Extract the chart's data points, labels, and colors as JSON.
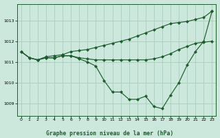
{
  "background_color": "#cce8dc",
  "grid_color": "#aaccbb",
  "line_color": "#1a5c2a",
  "title": "Graphe pression niveau de la mer (hPa)",
  "xlim": [
    -0.5,
    23.5
  ],
  "ylim": [
    1008.4,
    1013.8
  ],
  "yticks": [
    1009,
    1010,
    1011,
    1012,
    1013
  ],
  "xticks": [
    0,
    1,
    2,
    3,
    4,
    5,
    6,
    7,
    8,
    9,
    10,
    11,
    12,
    13,
    14,
    15,
    16,
    17,
    18,
    19,
    20,
    21,
    22,
    23
  ],
  "line1_x": [
    0,
    1,
    2,
    3,
    4,
    5,
    6,
    7,
    8,
    9,
    10,
    11,
    12,
    13,
    14,
    15,
    16,
    17,
    18,
    19,
    20,
    21,
    22,
    23
  ],
  "line1_y": [
    1011.5,
    1011.2,
    1011.1,
    1011.25,
    1011.3,
    1011.35,
    1011.5,
    1011.55,
    1011.6,
    1011.7,
    1011.8,
    1011.9,
    1012.0,
    1012.1,
    1012.25,
    1012.4,
    1012.55,
    1012.7,
    1012.85,
    1012.9,
    1012.95,
    1013.05,
    1013.15,
    1013.45
  ],
  "line2_x": [
    0,
    1,
    2,
    3,
    4,
    5,
    6,
    7,
    8,
    9,
    10,
    11,
    12,
    13,
    14,
    15,
    16,
    17,
    18,
    19,
    20,
    21,
    22,
    23
  ],
  "line2_y": [
    1011.5,
    1011.2,
    1011.1,
    1011.2,
    1011.2,
    1011.3,
    1011.3,
    1011.2,
    1011.15,
    1011.1,
    1011.1,
    1011.1,
    1011.1,
    1011.1,
    1011.1,
    1011.1,
    1011.15,
    1011.25,
    1011.4,
    1011.6,
    1011.75,
    1011.9,
    1011.95,
    1012.0
  ],
  "line3_x": [
    0,
    1,
    2,
    3,
    4,
    5,
    6,
    7,
    8,
    9,
    10,
    11,
    12,
    13,
    14,
    15,
    16,
    17,
    18,
    19,
    20,
    21,
    22,
    23
  ],
  "line3_y": [
    1011.5,
    1011.2,
    1011.1,
    1011.2,
    1011.2,
    1011.3,
    1011.3,
    1011.15,
    1011.0,
    1010.8,
    1010.1,
    1009.55,
    1009.55,
    1009.2,
    1009.2,
    1009.35,
    1008.85,
    1008.75,
    1009.4,
    1010.0,
    1010.85,
    1011.5,
    1012.0,
    1013.45
  ]
}
